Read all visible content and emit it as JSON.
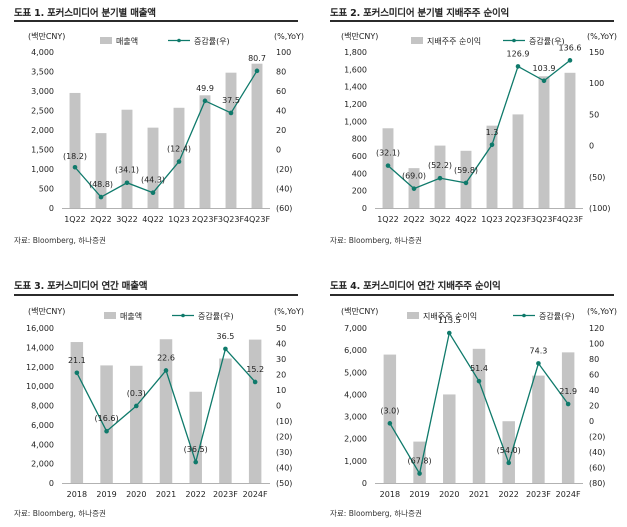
{
  "charts": [
    {
      "title": "도표 1. 포커스미디어 분기별 매출액",
      "source": "자료: Bloomberg, 하나증권",
      "left_unit": "(백만CNY)",
      "right_unit": "(%,YoY)",
      "legend": [
        "매출액",
        "증감률(우)"
      ]
    },
    {
      "title": "도표 2. 포커스미디어 분기별 지배주주 순이익",
      "source": "자료: Bloomberg, 하나증권",
      "left_unit": "(백만CNY)",
      "right_unit": "(%,YoY)",
      "legend": [
        "지배주주 순이익",
        "증감률(우)"
      ]
    },
    {
      "title": "도표 3. 포커스미디어 연간 매출액",
      "source": "자료: Bloomberg, 하나증권",
      "left_unit": "(백만CNY)",
      "right_unit": "(%,YoY)",
      "legend": [
        "매출액",
        "증감률(우)"
      ]
    },
    {
      "title": "도표 4. 포커스미디어 연간 지배주주 순이익",
      "source": "자료: Bloomberg, 하나증권",
      "left_unit": "(백만CNY)",
      "right_unit": "(%,YoY)",
      "legend": [
        "지배주주 순이익",
        "증감률(우)"
      ]
    }
  ],
  "colors": {
    "bar": "#c4c4c4",
    "line": "#0f7a6b",
    "rule": "#2b2b2b"
  },
  "chart_data": [
    {
      "type": "bar+line",
      "categories": [
        "1Q22",
        "2Q22",
        "3Q22",
        "4Q22",
        "1Q23",
        "2Q23F",
        "3Q23F",
        "4Q23F"
      ],
      "series": [
        {
          "name": "매출액",
          "type": "bar",
          "axis": "left",
          "values": [
            2950,
            1920,
            2520,
            2060,
            2570,
            2890,
            3470,
            3700
          ]
        },
        {
          "name": "증감률(우)",
          "type": "line",
          "axis": "right",
          "values": [
            -18.2,
            -48.8,
            -34.1,
            -44.3,
            -12.4,
            49.9,
            37.5,
            80.7
          ],
          "labels": [
            "(18.2)",
            "(48.8)",
            "(34.1)",
            "(44.3)",
            "(12.4)",
            "49.9",
            "37.5",
            "80.7"
          ]
        }
      ],
      "left_axis": {
        "min": 0,
        "max": 4000,
        "step": 500,
        "ticks": [
          "0",
          "500",
          "1,000",
          "1,500",
          "2,000",
          "2,500",
          "3,000",
          "3,500",
          "4,000"
        ]
      },
      "right_axis": {
        "min": -60,
        "max": 100,
        "step": 20,
        "ticks": [
          "(60)",
          "(40)",
          "(20)",
          "0",
          "20",
          "40",
          "60",
          "80",
          "100"
        ]
      }
    },
    {
      "type": "bar+line",
      "categories": [
        "1Q22",
        "2Q22",
        "3Q22",
        "4Q22",
        "1Q23",
        "2Q23F",
        "3Q23F",
        "4Q23F"
      ],
      "series": [
        {
          "name": "지배주주 순이익",
          "type": "bar",
          "axis": "left",
          "values": [
            920,
            460,
            720,
            660,
            950,
            1080,
            1520,
            1560
          ]
        },
        {
          "name": "증감률(우)",
          "type": "line",
          "axis": "right",
          "values": [
            -32.1,
            -69.0,
            -52.2,
            -59.8,
            1.3,
            126.9,
            103.9,
            136.6
          ],
          "labels": [
            "(32.1)",
            "(69.0)",
            "(52.2)",
            "(59.8)",
            "1.3",
            "126.9",
            "103.9",
            "136.6"
          ]
        }
      ],
      "left_axis": {
        "min": 0,
        "max": 1800,
        "step": 200,
        "ticks": [
          "0",
          "200",
          "400",
          "600",
          "800",
          "1,000",
          "1,200",
          "1,400",
          "1,600",
          "1,800"
        ]
      },
      "right_axis": {
        "min": -100,
        "max": 150,
        "step": 50,
        "ticks": [
          "(100)",
          "(50)",
          "0",
          "50",
          "100",
          "150"
        ]
      }
    },
    {
      "type": "bar+line",
      "categories": [
        "2018",
        "2019",
        "2020",
        "2021",
        "2022",
        "2023F",
        "2024F"
      ],
      "series": [
        {
          "name": "매출액",
          "type": "bar",
          "axis": "left",
          "values": [
            14550,
            12140,
            12100,
            14840,
            9420,
            12850,
            14800
          ]
        },
        {
          "name": "증감률(우)",
          "type": "line",
          "axis": "right",
          "values": [
            21.1,
            -16.6,
            -0.3,
            22.6,
            -36.5,
            36.5,
            15.2
          ],
          "labels": [
            "21.1",
            "(16.6)",
            "(0.3)",
            "22.6",
            "(36.5)",
            "36.5",
            "15.2"
          ]
        }
      ],
      "left_axis": {
        "min": 0,
        "max": 16000,
        "step": 2000,
        "ticks": [
          "0",
          "2,000",
          "4,000",
          "6,000",
          "8,000",
          "10,000",
          "12,000",
          "14,000",
          "16,000"
        ]
      },
      "right_axis": {
        "min": -50,
        "max": 50,
        "step": 10,
        "ticks": [
          "(50)",
          "(40)",
          "(30)",
          "(20)",
          "(10)",
          "0",
          "10",
          "20",
          "30",
          "40",
          "50"
        ]
      }
    },
    {
      "type": "bar+line",
      "categories": [
        "2018",
        "2019",
        "2020",
        "2021",
        "2022",
        "2023F",
        "2024F"
      ],
      "series": [
        {
          "name": "지배주주 순이익",
          "type": "bar",
          "axis": "left",
          "values": [
            5800,
            1870,
            4000,
            6060,
            2790,
            4850,
            5900
          ]
        },
        {
          "name": "증감률(우)",
          "type": "line",
          "axis": "right",
          "values": [
            -3.0,
            -67.8,
            113.5,
            51.4,
            -54.0,
            74.3,
            21.9
          ],
          "labels": [
            "(3.0)",
            "(67.8)",
            "113.5",
            "51.4",
            "(54.0)",
            "74.3",
            "21.9"
          ]
        }
      ],
      "left_axis": {
        "min": 0,
        "max": 7000,
        "step": 1000,
        "ticks": [
          "0",
          "1,000",
          "2,000",
          "3,000",
          "4,000",
          "5,000",
          "6,000",
          "7,000"
        ]
      },
      "right_axis": {
        "min": -80,
        "max": 120,
        "step": 20,
        "ticks": [
          "(80)",
          "(60)",
          "(40)",
          "(20)",
          "0",
          "20",
          "40",
          "60",
          "80",
          "100",
          "120"
        ]
      }
    }
  ]
}
